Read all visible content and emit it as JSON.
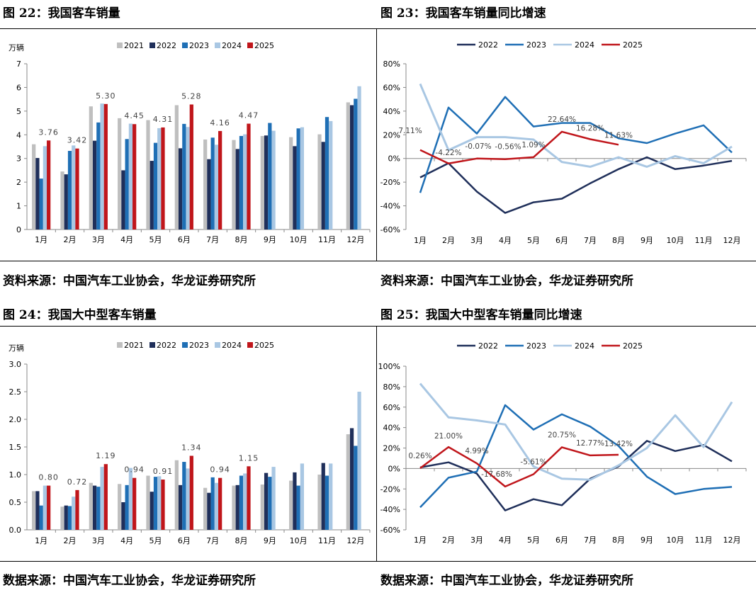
{
  "titles": {
    "fig22": "图 22：我国客车销量",
    "fig23": "图 23：我国客车销量同比增速",
    "fig24": "图 24：我国大中型客车销量",
    "fig25": "图 25：我国大中型客车销量同比增速"
  },
  "sources": {
    "fig22": "资料来源：中国汽车工业协会，华龙证券研究所",
    "fig23": "资料来源：中国汽车工业协会，华龙证券研究所",
    "fig24": "数据来源：中国汽车工业协会，华龙证券研究所",
    "fig25": "数据来源：中国汽车工业协会，华龙证券研究所"
  },
  "colors": {
    "2021": "#bfbfbf",
    "2022": "#1f2f5a",
    "2023": "#1f6fb5",
    "2024": "#a9c7e3",
    "2025": "#c0161b"
  },
  "chart_data": [
    {
      "id": "fig22",
      "type": "bar",
      "ylabel": "万辆",
      "ylim": [
        0,
        7
      ],
      "yticks": [
        "0",
        "1",
        "2",
        "3",
        "4",
        "5",
        "6",
        "7"
      ],
      "categories": [
        "1月",
        "2月",
        "3月",
        "4月",
        "5月",
        "6月",
        "7月",
        "8月",
        "9月",
        "10月",
        "11月",
        "12月"
      ],
      "legend_position": "top-center",
      "series": [
        {
          "name": "2021",
          "values": [
            3.6,
            2.45,
            5.2,
            4.7,
            4.62,
            5.25,
            3.8,
            3.78,
            3.95,
            3.9,
            4.02,
            5.37
          ]
        },
        {
          "name": "2022",
          "values": [
            3.02,
            2.33,
            3.75,
            2.5,
            2.9,
            3.43,
            2.97,
            3.4,
            3.97,
            3.52,
            3.7,
            5.25
          ]
        },
        {
          "name": "2023",
          "values": [
            2.15,
            3.32,
            4.52,
            3.82,
            3.66,
            4.46,
            3.88,
            3.95,
            4.5,
            4.27,
            4.75,
            5.52
          ]
        },
        {
          "name": "2024",
          "values": [
            3.52,
            3.55,
            5.32,
            4.47,
            4.28,
            4.33,
            3.58,
            4.02,
            4.17,
            4.32,
            4.58,
            6.05
          ]
        },
        {
          "name": "2025",
          "values": [
            3.76,
            3.42,
            5.3,
            4.45,
            4.31,
            5.28,
            4.16,
            4.47,
            null,
            null,
            null,
            null
          ]
        }
      ],
      "data_labels": {
        "series": "2025",
        "labels": [
          "3.76",
          "3.42",
          "5.30",
          "4.45",
          "4.31",
          "5.28",
          "4.16",
          "4.47"
        ]
      }
    },
    {
      "id": "fig23",
      "type": "line",
      "ylim": [
        -60,
        80
      ],
      "yticks": [
        "-60%",
        "-40%",
        "-20%",
        "0%",
        "20%",
        "40%",
        "60%",
        "80%"
      ],
      "categories": [
        "1月",
        "2月",
        "3月",
        "4月",
        "5月",
        "6月",
        "7月",
        "8月",
        "9月",
        "10月",
        "11月",
        "12月"
      ],
      "legend_position": "top-center",
      "series": [
        {
          "name": "2022",
          "values": [
            -16,
            -4,
            -28,
            -46,
            -37,
            -34,
            -21,
            -9,
            1,
            -9,
            -6,
            -2
          ]
        },
        {
          "name": "2023",
          "values": [
            -29,
            43,
            21,
            52,
            27,
            30,
            30,
            17,
            13,
            21,
            28,
            5
          ]
        },
        {
          "name": "2024",
          "values": [
            63,
            7,
            18,
            18,
            16,
            -3,
            -7,
            1,
            -7,
            2,
            -4,
            10
          ]
        },
        {
          "name": "2025",
          "values": [
            7.11,
            -4.22,
            -0.07,
            -0.56,
            1.09,
            22.64,
            16.28,
            11.63,
            null,
            null,
            null,
            null
          ]
        }
      ],
      "data_labels": {
        "series": "2025",
        "labels": [
          "7.11%",
          "-4.22%",
          "-0.07%",
          "-0.56%",
          "1.09%",
          "22.64%",
          "16.28%",
          "11.63%"
        ]
      }
    },
    {
      "id": "fig24",
      "type": "bar",
      "ylabel": "万辆",
      "ylim": [
        0,
        3
      ],
      "yticks": [
        "0.0",
        "0.5",
        "1.0",
        "1.5",
        "2.0",
        "2.5",
        "3.0"
      ],
      "categories": [
        "1月",
        "2月",
        "3月",
        "4月",
        "5月",
        "6月",
        "7月",
        "8月",
        "9月",
        "10月",
        "11月",
        "12月"
      ],
      "legend_position": "top-center",
      "series": [
        {
          "name": "2021",
          "values": [
            0.7,
            0.42,
            0.85,
            0.83,
            0.98,
            1.26,
            0.76,
            0.8,
            0.82,
            0.89,
            1.0,
            1.73
          ]
        },
        {
          "name": "2022",
          "values": [
            0.7,
            0.44,
            0.8,
            0.5,
            0.69,
            0.81,
            0.67,
            0.81,
            1.03,
            1.04,
            1.21,
            1.84
          ]
        },
        {
          "name": "2023",
          "values": [
            0.44,
            0.43,
            0.78,
            0.81,
            0.96,
            1.23,
            0.95,
            0.98,
            0.96,
            0.8,
            0.98,
            1.52
          ]
        },
        {
          "name": "2024",
          "values": [
            0.8,
            0.6,
            1.14,
            1.12,
            0.97,
            1.11,
            0.85,
            1.02,
            1.14,
            1.2,
            1.2,
            2.5
          ]
        },
        {
          "name": "2025",
          "values": [
            0.8,
            0.72,
            1.19,
            0.94,
            0.91,
            1.34,
            0.94,
            1.15,
            null,
            null,
            null,
            null
          ]
        }
      ],
      "data_labels": {
        "series": "2025",
        "labels": [
          "0.80",
          "0.72",
          "1.19",
          "0.94",
          "0.91",
          "1.34",
          "0.94",
          "1.15"
        ]
      }
    },
    {
      "id": "fig25",
      "type": "line",
      "ylim": [
        -60,
        100
      ],
      "yticks": [
        "-60%",
        "-40%",
        "-20%",
        "0%",
        "20%",
        "40%",
        "60%",
        "80%",
        "100%"
      ],
      "categories": [
        "1月",
        "2月",
        "3月",
        "4月",
        "5月",
        "6月",
        "7月",
        "8月",
        "9月",
        "10月",
        "11月",
        "12月"
      ],
      "legend_position": "top-center",
      "series": [
        {
          "name": "2022",
          "values": [
            1,
            6,
            -5,
            -41,
            -30,
            -36,
            -10,
            2,
            27,
            17,
            23,
            7
          ]
        },
        {
          "name": "2023",
          "values": [
            -38,
            -9,
            -3,
            62,
            38,
            53,
            41,
            22,
            -8,
            -25,
            -20,
            -18
          ]
        },
        {
          "name": "2024",
          "values": [
            83,
            50,
            47,
            43,
            2,
            -10,
            -11,
            3,
            20,
            52,
            21,
            65
          ]
        },
        {
          "name": "2025",
          "values": [
            0.26,
            21.0,
            4.99,
            -17.68,
            -5.61,
            20.75,
            12.77,
            13.42,
            null,
            null,
            null,
            null
          ]
        }
      ],
      "data_labels": {
        "series": "2025",
        "labels": [
          "0.26%",
          "21.00%",
          "4.99%",
          "-17.68%",
          "-5.61%",
          "20.75%",
          "12.77%",
          "13.42%"
        ]
      }
    }
  ]
}
